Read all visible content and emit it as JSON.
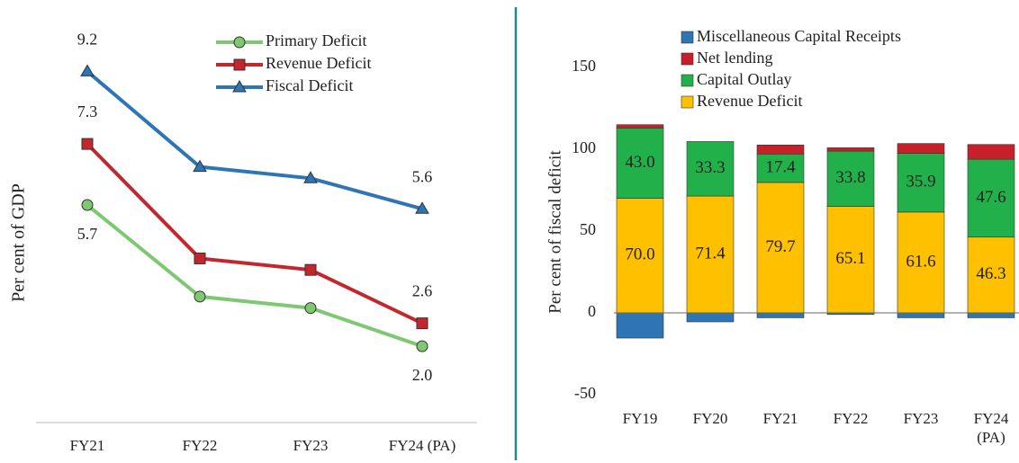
{
  "chart_data": [
    {
      "type": "line",
      "y_label": "Per cent of GDP",
      "categories": [
        "FY21",
        "FY22",
        "FY23",
        "FY24 (PA)"
      ],
      "ylim": [
        0,
        10.6
      ],
      "legend": "top",
      "series": [
        {
          "name": "Primary Deficit",
          "color": "#7dc870",
          "marker": "circle",
          "values": [
            5.7,
            3.3,
            3.0,
            2.0
          ],
          "value_labels": [
            "5.7",
            null,
            null,
            "2.0"
          ]
        },
        {
          "name": "Revenue Deficit",
          "color": "#c4262e",
          "marker": "square",
          "values": [
            7.3,
            4.3,
            4.0,
            2.6
          ],
          "value_labels": [
            "7.3",
            null,
            null,
            "2.6"
          ]
        },
        {
          "name": "Fiscal Deficit",
          "color": "#2e75b6",
          "marker": "triangle",
          "values": [
            9.2,
            6.7,
            6.4,
            5.6
          ],
          "value_labels": [
            "9.2",
            null,
            null,
            "5.6"
          ]
        }
      ]
    },
    {
      "type": "bar",
      "stacked": true,
      "y_label": "Per cent of fiscal deficit",
      "categories": [
        "FY19",
        "FY20",
        "FY21",
        "FY22",
        "FY23",
        "FY24 (PA)"
      ],
      "ylim": [
        -50,
        150
      ],
      "yticks": [
        -50,
        0,
        50,
        100,
        150
      ],
      "legend": "top",
      "series": [
        {
          "name": "Miscellaneous Capital Receipts",
          "color": "#2e75b6",
          "values": [
            -15.4,
            -5.5,
            -3,
            -1,
            -3,
            -3
          ]
        },
        {
          "name": "Net lending",
          "color": "#c8202a",
          "values": [
            2,
            0,
            5.5,
            2,
            6,
            9
          ]
        },
        {
          "name": "Capital Outlay",
          "color": "#22b04b",
          "values": [
            43.0,
            33.3,
            17.4,
            33.8,
            35.9,
            47.6
          ],
          "value_labels": [
            "43.0",
            "33.3",
            "17.4",
            "33.8",
            "35.9",
            "47.6"
          ]
        },
        {
          "name": "Revenue Deficit",
          "color": "#ffc000",
          "values": [
            70.0,
            71.4,
            79.7,
            65.1,
            61.6,
            46.3
          ],
          "value_labels": [
            "70.0",
            "71.4",
            "79.7",
            "65.1",
            "61.6",
            "46.3"
          ]
        }
      ]
    }
  ]
}
